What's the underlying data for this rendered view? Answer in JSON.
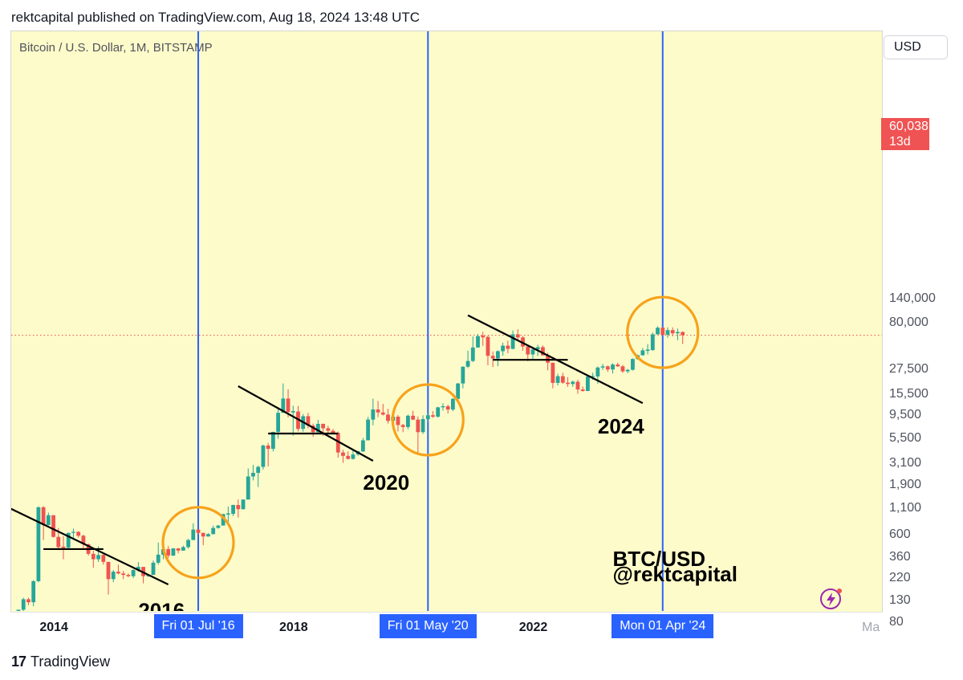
{
  "header": {
    "published": "rektcapital published on TradingView.com, Aug 18, 2024 13:48 UTC"
  },
  "footer": {
    "brand_mark": "17",
    "brand_name": "TradingView"
  },
  "colors": {
    "background": "#fdfbc9",
    "up": "#26a69a",
    "down": "#ef5350",
    "halving_line": "#2962ff",
    "circle": "#f7a21b",
    "trendline": "#000000"
  },
  "chart_data": {
    "type": "candlestick",
    "title": "Bitcoin / U.S. Dollar, 1M, BITSTAMP",
    "currency": "USD",
    "y_scale": "log",
    "y_ticks": [
      {
        "value": 140000,
        "label": "140,000"
      },
      {
        "value": 80000,
        "label": "80,000"
      },
      {
        "value": 27500,
        "label": "27,500"
      },
      {
        "value": 15500,
        "label": "15,500"
      },
      {
        "value": 9500,
        "label": "9,500"
      },
      {
        "value": 5500,
        "label": "5,500"
      },
      {
        "value": 3100,
        "label": "3,100"
      },
      {
        "value": 1900,
        "label": "1,900"
      },
      {
        "value": 1100,
        "label": "1,100"
      },
      {
        "value": 600,
        "label": "600"
      },
      {
        "value": 360,
        "label": "360"
      },
      {
        "value": 220,
        "label": "220"
      },
      {
        "value": 130,
        "label": "130"
      },
      {
        "value": 80,
        "label": "80"
      }
    ],
    "x_ticks": [
      {
        "date": "2014-01",
        "label": "2014"
      },
      {
        "date": "2016-01",
        "label": "2"
      },
      {
        "date": "2018-01",
        "label": "2018"
      },
      {
        "date": "2022-01",
        "label": "2022"
      },
      {
        "date": "2025-02",
        "label": "Ma"
      }
    ],
    "current_price": {
      "value": 60038,
      "label": "60,038",
      "countdown": "13d 11h"
    },
    "halvings": [
      {
        "date": "2016-07",
        "label": "Fri 01 Jul '16"
      },
      {
        "date": "2020-05",
        "label": "Fri 01 May '20"
      },
      {
        "date": "2024-04",
        "label": "Mon 01 Apr '24"
      }
    ],
    "annotations": [
      {
        "text": "2016",
        "date": "2015-07",
        "price": 88
      },
      {
        "text": "2020",
        "date": "2019-04",
        "price": 1700
      },
      {
        "text": "2024",
        "date": "2023-03",
        "price": 6200
      },
      {
        "text": "BTC/USD",
        "date": "2023-06",
        "price": 290
      },
      {
        "text": "@rektcapital",
        "date": "2023-06",
        "price": 205
      }
    ],
    "halving_circles": [
      {
        "date": "2016-07",
        "price": 500
      },
      {
        "date": "2020-05",
        "price": 8500
      },
      {
        "date": "2024-04",
        "price": 64000
      }
    ],
    "trendlines": [
      {
        "from": {
          "date": "2013-01",
          "price": 1400
        },
        "to": {
          "date": "2016-01",
          "price": 190
        }
      },
      {
        "from": {
          "date": "2013-12",
          "price": 430
        },
        "to": {
          "date": "2014-12",
          "price": 430
        }
      },
      {
        "from": {
          "date": "2017-03",
          "price": 18500
        },
        "to": {
          "date": "2019-06",
          "price": 3300
        }
      },
      {
        "from": {
          "date": "2017-09",
          "price": 6200
        },
        "to": {
          "date": "2018-11",
          "price": 6200
        }
      },
      {
        "from": {
          "date": "2021-01",
          "price": 95000
        },
        "to": {
          "date": "2023-12",
          "price": 12500
        }
      },
      {
        "from": {
          "date": "2021-06",
          "price": 34000
        },
        "to": {
          "date": "2022-09",
          "price": 34000
        }
      }
    ],
    "candles": [
      [
        "2013-07",
        82,
        104,
        68,
        106
      ],
      [
        "2013-08",
        106,
        140,
        100,
        135
      ],
      [
        "2013-09",
        135,
        140,
        118,
        126
      ],
      [
        "2013-10",
        126,
        210,
        115,
        205
      ],
      [
        "2013-11",
        205,
        1150,
        200,
        1130
      ],
      [
        "2013-12",
        1130,
        1160,
        530,
        750
      ],
      [
        "2014-01",
        750,
        1000,
        740,
        940
      ],
      [
        "2014-02",
        940,
        940,
        560,
        570
      ],
      [
        "2014-03",
        570,
        700,
        420,
        450
      ],
      [
        "2014-04",
        450,
        580,
        340,
        445
      ],
      [
        "2014-05",
        445,
        630,
        430,
        625
      ],
      [
        "2014-06",
        625,
        690,
        550,
        640
      ],
      [
        "2014-07",
        640,
        650,
        560,
        585
      ],
      [
        "2014-08",
        585,
        600,
        440,
        480
      ],
      [
        "2014-09",
        480,
        490,
        370,
        385
      ],
      [
        "2014-10",
        385,
        415,
        280,
        340
      ],
      [
        "2014-11",
        340,
        460,
        320,
        375
      ],
      [
        "2014-12",
        375,
        385,
        300,
        320
      ],
      [
        "2015-01",
        320,
        320,
        150,
        215
      ],
      [
        "2015-02",
        215,
        265,
        200,
        255
      ],
      [
        "2015-03",
        255,
        300,
        240,
        245
      ],
      [
        "2015-04",
        245,
        260,
        215,
        237
      ],
      [
        "2015-05",
        237,
        245,
        225,
        230
      ],
      [
        "2015-06",
        230,
        270,
        220,
        265
      ],
      [
        "2015-07",
        265,
        318,
        255,
        285
      ],
      [
        "2015-08",
        285,
        285,
        195,
        230
      ],
      [
        "2015-09",
        230,
        240,
        225,
        237
      ],
      [
        "2015-10",
        237,
        330,
        237,
        314
      ],
      [
        "2015-11",
        314,
        500,
        300,
        378
      ],
      [
        "2015-12",
        378,
        470,
        340,
        430
      ],
      [
        "2016-01",
        430,
        460,
        350,
        370
      ],
      [
        "2016-02",
        370,
        440,
        366,
        437
      ],
      [
        "2016-03",
        437,
        440,
        390,
        415
      ],
      [
        "2016-04",
        415,
        465,
        415,
        450
      ],
      [
        "2016-05",
        450,
        545,
        435,
        530
      ],
      [
        "2016-06",
        530,
        780,
        530,
        675
      ],
      [
        "2016-07",
        675,
        680,
        600,
        625
      ],
      [
        "2016-08",
        625,
        625,
        470,
        575
      ],
      [
        "2016-09",
        575,
        620,
        575,
        608
      ],
      [
        "2016-10",
        608,
        740,
        602,
        700
      ],
      [
        "2016-11",
        700,
        750,
        690,
        740
      ],
      [
        "2016-12",
        740,
        970,
        745,
        965
      ],
      [
        "2017-01",
        965,
        1150,
        750,
        970
      ],
      [
        "2017-02",
        970,
        1200,
        920,
        1190
      ],
      [
        "2017-03",
        1190,
        1350,
        890,
        1080
      ],
      [
        "2017-04",
        1080,
        1350,
        1070,
        1350
      ],
      [
        "2017-05",
        1350,
        2770,
        1350,
        2300
      ],
      [
        "2017-06",
        2300,
        3000,
        2100,
        2500
      ],
      [
        "2017-07",
        2500,
        2950,
        1800,
        2870
      ],
      [
        "2017-08",
        2870,
        4800,
        2700,
        4700
      ],
      [
        "2017-09",
        4700,
        5000,
        2900,
        4350
      ],
      [
        "2017-10",
        4350,
        6450,
        4100,
        6440
      ],
      [
        "2017-11",
        6440,
        11400,
        5500,
        10000
      ],
      [
        "2017-12",
        10000,
        19700,
        10500,
        13900
      ],
      [
        "2018-01",
        13900,
        17200,
        9000,
        10200
      ],
      [
        "2018-02",
        10200,
        11800,
        5900,
        10300
      ],
      [
        "2018-03",
        10300,
        11700,
        6500,
        6900
      ],
      [
        "2018-04",
        6900,
        9750,
        6450,
        9250
      ],
      [
        "2018-05",
        9250,
        10000,
        7000,
        7450
      ],
      [
        "2018-06",
        7450,
        7800,
        5750,
        6400
      ],
      [
        "2018-07",
        6400,
        8500,
        6100,
        7750
      ],
      [
        "2018-08",
        7750,
        7800,
        5880,
        7000
      ],
      [
        "2018-09",
        7000,
        7400,
        6100,
        6600
      ],
      [
        "2018-10",
        6600,
        6900,
        6200,
        6300
      ],
      [
        "2018-11",
        6300,
        6500,
        3550,
        4000
      ],
      [
        "2018-12",
        4000,
        4250,
        3150,
        3700
      ],
      [
        "2019-01",
        3700,
        4100,
        3400,
        3450
      ],
      [
        "2019-02",
        3450,
        4200,
        3400,
        3820
      ],
      [
        "2019-03",
        3820,
        4150,
        3700,
        4100
      ],
      [
        "2019-04",
        4100,
        5600,
        4050,
        5300
      ],
      [
        "2019-05",
        5300,
        9100,
        5300,
        8550
      ],
      [
        "2019-06",
        8550,
        13880,
        7500,
        10800
      ],
      [
        "2019-07",
        10800,
        13150,
        9050,
        10080
      ],
      [
        "2019-08",
        10080,
        12300,
        9400,
        9600
      ],
      [
        "2019-09",
        9600,
        10950,
        7800,
        8300
      ],
      [
        "2019-10",
        8300,
        10400,
        7300,
        9150
      ],
      [
        "2019-11",
        9150,
        9500,
        6500,
        7550
      ],
      [
        "2019-12",
        7550,
        7750,
        6400,
        7200
      ],
      [
        "2020-01",
        7200,
        9600,
        6850,
        9350
      ],
      [
        "2020-02",
        9350,
        10500,
        8450,
        8550
      ],
      [
        "2020-03",
        8550,
        9200,
        3850,
        6400
      ],
      [
        "2020-04",
        6400,
        9450,
        6150,
        8650
      ],
      [
        "2020-05",
        8650,
        10070,
        8100,
        9450
      ],
      [
        "2020-06",
        9450,
        10400,
        8900,
        9150
      ],
      [
        "2020-07",
        9150,
        11500,
        8950,
        11350
      ],
      [
        "2020-08",
        11350,
        12470,
        10500,
        11650
      ],
      [
        "2020-09",
        11650,
        12070,
        9850,
        10780
      ],
      [
        "2020-10",
        10780,
        14100,
        10400,
        13800
      ],
      [
        "2020-11",
        13800,
        19900,
        13200,
        19700
      ],
      [
        "2020-12",
        19700,
        29300,
        17600,
        29000
      ],
      [
        "2021-01",
        29000,
        41950,
        28100,
        33100
      ],
      [
        "2021-02",
        33100,
        58350,
        32300,
        45200
      ],
      [
        "2021-03",
        45200,
        61800,
        44950,
        58800
      ],
      [
        "2021-04",
        58800,
        64900,
        47000,
        57700
      ],
      [
        "2021-05",
        57700,
        59600,
        30000,
        37300
      ],
      [
        "2021-06",
        37300,
        41300,
        28800,
        35050
      ],
      [
        "2021-07",
        35050,
        42300,
        29300,
        41500
      ],
      [
        "2021-08",
        41500,
        50500,
        37400,
        47150
      ],
      [
        "2021-09",
        47150,
        52950,
        39600,
        43800
      ],
      [
        "2021-10",
        43800,
        67000,
        43300,
        61300
      ],
      [
        "2021-11",
        61300,
        69000,
        53250,
        57000
      ],
      [
        "2021-12",
        57000,
        59100,
        42000,
        46200
      ],
      [
        "2022-01",
        46200,
        47900,
        32950,
        38500
      ],
      [
        "2022-02",
        38500,
        45800,
        34300,
        43200
      ],
      [
        "2022-03",
        43200,
        48200,
        37200,
        45550
      ],
      [
        "2022-04",
        45550,
        47450,
        37700,
        37650
      ],
      [
        "2022-05",
        37650,
        40000,
        26700,
        31800
      ],
      [
        "2022-06",
        31800,
        31950,
        17600,
        19950
      ],
      [
        "2022-07",
        19950,
        24650,
        18800,
        23300
      ],
      [
        "2022-08",
        23300,
        25200,
        19550,
        20050
      ],
      [
        "2022-09",
        20050,
        22800,
        18200,
        19450
      ],
      [
        "2022-10",
        19450,
        21100,
        18200,
        20500
      ],
      [
        "2022-11",
        20500,
        21450,
        15500,
        17150
      ],
      [
        "2022-12",
        17150,
        18350,
        16300,
        16550
      ],
      [
        "2023-01",
        16550,
        23950,
        16500,
        23150
      ],
      [
        "2023-02",
        23150,
        25250,
        21350,
        23150
      ],
      [
        "2023-03",
        23150,
        29200,
        19550,
        28450
      ],
      [
        "2023-04",
        28450,
        31000,
        26950,
        29250
      ],
      [
        "2023-05",
        29250,
        29850,
        25800,
        27200
      ],
      [
        "2023-06",
        27200,
        31450,
        24750,
        30500
      ],
      [
        "2023-07",
        30500,
        31800,
        28850,
        29250
      ],
      [
        "2023-08",
        29250,
        30200,
        25150,
        26050
      ],
      [
        "2023-09",
        26050,
        27500,
        24950,
        27000
      ],
      [
        "2023-10",
        27000,
        35200,
        26550,
        34650
      ],
      [
        "2023-11",
        34650,
        38450,
        34100,
        37750
      ],
      [
        "2023-12",
        37750,
        44700,
        37600,
        42300
      ],
      [
        "2024-01",
        42300,
        48950,
        38550,
        42600
      ],
      [
        "2024-02",
        42600,
        63950,
        41900,
        61250
      ],
      [
        "2024-03",
        61250,
        73800,
        60800,
        71350
      ],
      [
        "2024-04",
        71350,
        72750,
        59200,
        60650
      ],
      [
        "2024-05",
        60650,
        71950,
        56600,
        67500
      ],
      [
        "2024-06",
        67500,
        71950,
        58450,
        62700
      ],
      [
        "2024-07",
        62700,
        70000,
        53500,
        64600
      ],
      [
        "2024-08",
        64600,
        65600,
        49000,
        60038
      ]
    ]
  }
}
